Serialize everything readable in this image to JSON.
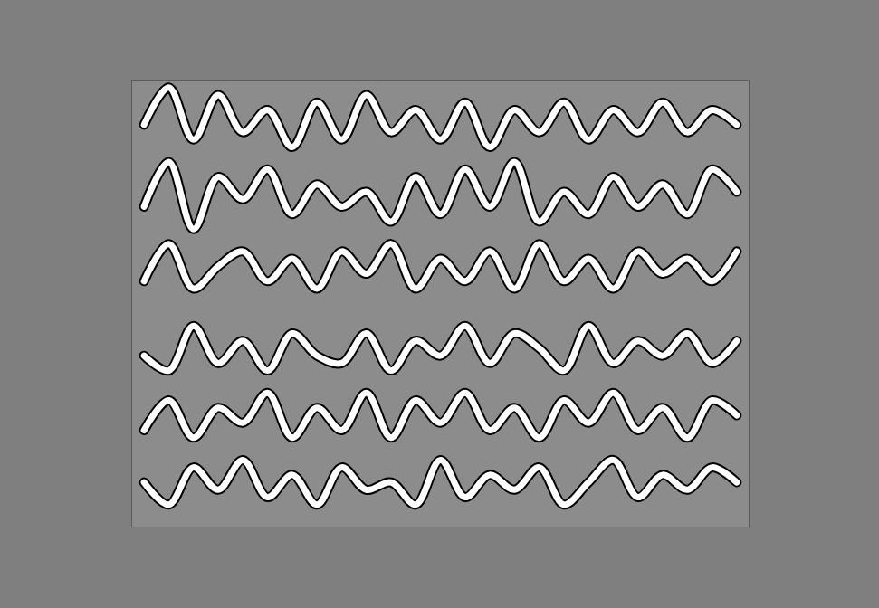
{
  "chart_data": {
    "type": "line",
    "x": [
      2,
      6,
      10,
      14,
      18,
      22,
      26,
      30,
      34,
      38,
      42,
      46,
      50,
      54,
      58,
      62,
      66,
      70,
      74,
      78,
      82,
      86,
      90,
      94,
      98
    ],
    "xlim": [
      0,
      100
    ],
    "ylim": [
      0,
      6
    ],
    "tick_labels": false,
    "grid": false,
    "series": [
      {
        "color": "#ffffff",
        "values": [
          5.4,
          5.9,
          5.2,
          5.8,
          5.3,
          5.6,
          5.1,
          5.7,
          5.2,
          5.8,
          5.3,
          5.6,
          5.2,
          5.7,
          5.1,
          5.6,
          5.3,
          5.7,
          5.2,
          5.6,
          5.3,
          5.7,
          5.3,
          5.6,
          5.4
        ]
      },
      {
        "color": "#ffffff",
        "values": [
          4.3,
          4.9,
          4.0,
          4.7,
          4.4,
          4.8,
          4.2,
          4.6,
          4.3,
          4.5,
          4.1,
          4.7,
          4.2,
          4.8,
          4.3,
          4.9,
          4.1,
          4.5,
          4.2,
          4.7,
          4.3,
          4.6,
          4.2,
          4.8,
          4.5
        ]
      },
      {
        "color": "#ffffff",
        "values": [
          3.3,
          3.8,
          3.2,
          3.5,
          3.7,
          3.3,
          3.6,
          3.2,
          3.7,
          3.4,
          3.8,
          3.2,
          3.6,
          3.3,
          3.7,
          3.2,
          3.8,
          3.3,
          3.6,
          3.2,
          3.7,
          3.4,
          3.6,
          3.3,
          3.7
        ]
      },
      {
        "color": "#ffffff",
        "values": [
          2.3,
          2.1,
          2.7,
          2.2,
          2.5,
          2.1,
          2.6,
          2.3,
          2.2,
          2.6,
          2.1,
          2.5,
          2.3,
          2.7,
          2.2,
          2.6,
          2.4,
          2.1,
          2.7,
          2.2,
          2.5,
          2.3,
          2.6,
          2.2,
          2.5
        ]
      },
      {
        "color": "#ffffff",
        "values": [
          1.3,
          1.7,
          1.2,
          1.6,
          1.4,
          1.8,
          1.2,
          1.6,
          1.3,
          1.8,
          1.2,
          1.7,
          1.4,
          1.8,
          1.3,
          1.6,
          1.2,
          1.7,
          1.4,
          1.8,
          1.3,
          1.6,
          1.2,
          1.7,
          1.5
        ]
      },
      {
        "color": "#ffffff",
        "values": [
          0.6,
          0.3,
          0.8,
          0.5,
          0.9,
          0.4,
          0.7,
          0.3,
          0.8,
          0.5,
          0.6,
          0.3,
          0.9,
          0.4,
          0.7,
          0.5,
          0.8,
          0.3,
          0.6,
          0.9,
          0.4,
          0.7,
          0.5,
          0.8,
          0.6
        ]
      }
    ]
  }
}
